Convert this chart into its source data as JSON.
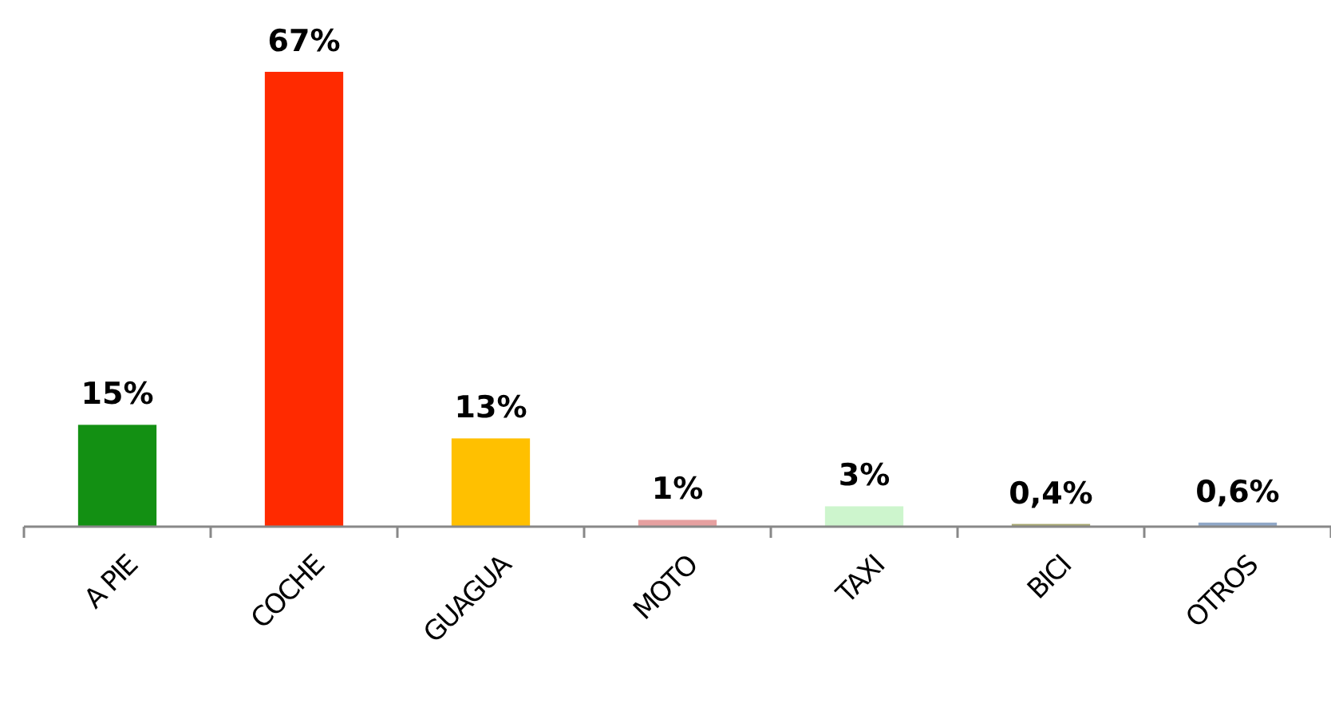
{
  "chart_data": {
    "type": "bar",
    "categories": [
      "A PIE",
      "COCHE",
      "GUAGUA",
      "MOTO",
      "TAXI",
      "BICI",
      "OTROS"
    ],
    "values": [
      15,
      67,
      13,
      1,
      3,
      0.4,
      0.6
    ],
    "colors": [
      "#139013",
      "#ff2a00",
      "#ffc000",
      "#e6a0a0",
      "#cdf5cd",
      "#a8a870",
      "#90a8c8"
    ],
    "value_labels": [
      "15%",
      "67%",
      "13%",
      "1%",
      "3%",
      "0,4%",
      "0,6%"
    ]
  }
}
